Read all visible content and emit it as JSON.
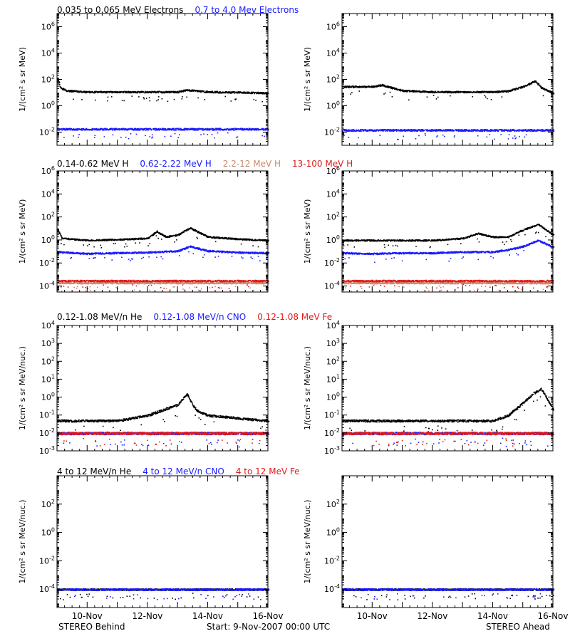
{
  "colors": {
    "black": "#000000",
    "blue": "#1a1aff",
    "tan": "#c98a6b",
    "red": "#e11a1a"
  },
  "footer": {
    "left": "STEREO Behind",
    "center": "Start:  9-Nov-2007 00:00 UTC",
    "right": "STEREO Ahead"
  },
  "chart_data": [
    {
      "type": "scatter",
      "row": 1,
      "scale": "log",
      "title_segments": [
        {
          "text": "0.035 to 0.065 MeV Electrons",
          "color": "black"
        },
        {
          "text": "0.7 to 4.0 Mev Electrons",
          "color": "blue"
        }
      ],
      "ylabel": "1/(cm² s sr MeV)",
      "ylim": [
        0.001,
        10000000
      ],
      "yticks": [
        {
          "label": "10^6",
          "v": 1000000
        },
        {
          "label": "10^4",
          "v": 10000
        },
        {
          "label": "10^2",
          "v": 100
        },
        {
          "label": "10^0",
          "v": 1
        },
        {
          "label": "10^-2",
          "v": 0.01
        }
      ],
      "panels": [
        {
          "name": "STEREO Behind",
          "series": [
            {
              "name": "0.035 to 0.065 MeV Electrons",
              "color": "black",
              "x": [
                0,
                0.1,
                0.3,
                1,
                2,
                3,
                4,
                4.3,
                5,
                6,
                7
              ],
              "y": [
                150,
                25,
                15,
                12,
                12,
                12,
                12,
                17,
                12,
                11,
                10
              ]
            },
            {
              "name": "0.7 to 4.0 Mev Electrons",
              "color": "blue",
              "x": [
                0,
                7
              ],
              "y": [
                0.018,
                0.018
              ]
            }
          ]
        },
        {
          "name": "STEREO Ahead",
          "series": [
            {
              "name": "0.035 to 0.065 MeV Electrons",
              "color": "black",
              "x": [
                0,
                1,
                1.3,
                2,
                3,
                4,
                5,
                5.5,
                6,
                6.4,
                6.6,
                7
              ],
              "y": [
                30,
                30,
                40,
                15,
                12,
                12,
                12,
                14,
                30,
                80,
                25,
                10
              ]
            },
            {
              "name": "0.7 to 4.0 Mev Electrons",
              "color": "blue",
              "x": [
                0,
                7
              ],
              "y": [
                0.015,
                0.015
              ]
            }
          ]
        }
      ]
    },
    {
      "type": "scatter",
      "row": 2,
      "scale": "log",
      "title_segments": [
        {
          "text": "0.14-0.62 MeV H",
          "color": "black"
        },
        {
          "text": "0.62-2.22 MeV H",
          "color": "blue"
        },
        {
          "text": "2.2-12 MeV H",
          "color": "tan"
        },
        {
          "text": "13-100 MeV H",
          "color": "red"
        }
      ],
      "ylabel": "1/(cm² s sr MeV)",
      "ylim": [
        3e-05,
        1000000
      ],
      "yticks": [
        {
          "label": "10^6",
          "v": 1000000
        },
        {
          "label": "10^4",
          "v": 10000
        },
        {
          "label": "10^2",
          "v": 100
        },
        {
          "label": "10^0",
          "v": 1
        },
        {
          "label": "10^-2",
          "v": 0.01
        },
        {
          "label": "10^-4",
          "v": 0.0001
        }
      ],
      "panels": [
        {
          "name": "STEREO Behind",
          "series": [
            {
              "name": "0.14-0.62 MeV H",
              "color": "black",
              "x": [
                0,
                0.15,
                1,
                2,
                3,
                3.3,
                3.6,
                4,
                4.4,
                5,
                6,
                7
              ],
              "y": [
                10,
                1.5,
                1.0,
                1.2,
                1.5,
                6,
                2,
                3,
                12,
                2,
                1.3,
                1.0
              ]
            },
            {
              "name": "0.62-2.22 MeV H",
              "color": "blue",
              "x": [
                0,
                1,
                2,
                3,
                4,
                4.4,
                5,
                6,
                7
              ],
              "y": [
                0.1,
                0.07,
                0.08,
                0.09,
                0.12,
                0.3,
                0.12,
                0.09,
                0.08
              ]
            },
            {
              "name": "2.2-12 MeV H",
              "color": "tan",
              "x": [
                0,
                7
              ],
              "y": [
                0.0002,
                0.0002
              ]
            },
            {
              "name": "13-100 MeV H",
              "color": "red",
              "x": [
                0,
                7
              ],
              "y": [
                0.0003,
                0.0003
              ]
            }
          ]
        },
        {
          "name": "STEREO Ahead",
          "series": [
            {
              "name": "0.14-0.62 MeV H",
              "color": "black",
              "x": [
                0,
                1,
                2,
                3,
                4,
                4.5,
                5,
                5.5,
                6,
                6.5,
                7
              ],
              "y": [
                1.0,
                1.0,
                1.0,
                1.0,
                1.5,
                4,
                2,
                2,
                8,
                25,
                3
              ]
            },
            {
              "name": "0.62-2.22 MeV H",
              "color": "blue",
              "x": [
                0,
                1,
                2,
                3,
                4,
                5,
                5.5,
                6,
                6.5,
                7
              ],
              "y": [
                0.08,
                0.07,
                0.08,
                0.08,
                0.1,
                0.1,
                0.15,
                0.3,
                1.0,
                0.25
              ]
            },
            {
              "name": "2.2-12 MeV H",
              "color": "tan",
              "x": [
                0,
                7
              ],
              "y": [
                0.0002,
                0.0002
              ]
            },
            {
              "name": "13-100 MeV H",
              "color": "red",
              "x": [
                0,
                7
              ],
              "y": [
                0.0003,
                0.0003
              ]
            }
          ]
        }
      ]
    },
    {
      "type": "scatter",
      "row": 3,
      "scale": "log",
      "title_segments": [
        {
          "text": "0.12-1.08 MeV/n He",
          "color": "black"
        },
        {
          "text": "0.12-1.08 MeV/n CNO",
          "color": "blue"
        },
        {
          "text": "0.12-1.08 MeV Fe",
          "color": "red"
        }
      ],
      "ylabel": "1/(cm² s sr MeV/nuc.)",
      "ylim": [
        0.001,
        10000
      ],
      "yticks": [
        {
          "label": "10^4",
          "v": 10000
        },
        {
          "label": "10^3",
          "v": 1000
        },
        {
          "label": "10^2",
          "v": 100
        },
        {
          "label": "10^1",
          "v": 10
        },
        {
          "label": "10^0",
          "v": 1
        },
        {
          "label": "10^-1",
          "v": 0.1
        },
        {
          "label": "10^-2",
          "v": 0.01
        },
        {
          "label": "10^-3",
          "v": 0.001
        }
      ],
      "panels": [
        {
          "name": "STEREO Behind",
          "series": [
            {
              "name": "0.12-1.08 MeV/n He",
              "color": "black",
              "x": [
                0,
                1,
                2,
                3,
                3.5,
                4,
                4.3,
                4.6,
                5,
                6,
                7
              ],
              "y": [
                0.05,
                0.05,
                0.05,
                0.1,
                0.2,
                0.4,
                1.5,
                0.2,
                0.1,
                0.07,
                0.05
              ]
            },
            {
              "name": "0.12-1.08 MeV/n CNO",
              "color": "blue",
              "x": [
                0,
                7
              ],
              "y": [
                0.01,
                0.01
              ]
            },
            {
              "name": "0.12-1.08 MeV Fe",
              "color": "red",
              "x": [
                0,
                7
              ],
              "y": [
                0.01,
                0.01
              ]
            }
          ]
        },
        {
          "name": "STEREO Ahead",
          "series": [
            {
              "name": "0.12-1.08 MeV/n He",
              "color": "black",
              "x": [
                0,
                1,
                2,
                3,
                4,
                5,
                5.5,
                6,
                6.3,
                6.6,
                7
              ],
              "y": [
                0.05,
                0.05,
                0.05,
                0.05,
                0.05,
                0.05,
                0.1,
                0.5,
                1.5,
                3,
                0.2
              ]
            },
            {
              "name": "0.12-1.08 MeV/n CNO",
              "color": "blue",
              "x": [
                0,
                7
              ],
              "y": [
                0.01,
                0.01
              ]
            },
            {
              "name": "0.12-1.08 MeV Fe",
              "color": "red",
              "x": [
                0,
                7
              ],
              "y": [
                0.01,
                0.01
              ]
            }
          ]
        }
      ]
    },
    {
      "type": "scatter",
      "row": 4,
      "scale": "log",
      "title_segments": [
        {
          "text": "4 to 12 MeV/n He",
          "color": "black"
        },
        {
          "text": "4 to 12 MeV/n CNO",
          "color": "blue"
        },
        {
          "text": "4 to 12 MeV Fe",
          "color": "red"
        }
      ],
      "ylabel": "1/(cm² s sr MeV/nuc.)",
      "ylim": [
        5e-06,
        10000
      ],
      "yticks": [
        {
          "label": "10^2",
          "v": 100
        },
        {
          "label": "10^0",
          "v": 1
        },
        {
          "label": "10^-2",
          "v": 0.01
        },
        {
          "label": "10^-4",
          "v": 0.0001
        }
      ],
      "panels": [
        {
          "name": "STEREO Behind",
          "series": [
            {
              "name": "4 to 12 MeV/n He",
              "color": "black",
              "x": [
                0,
                7
              ],
              "y": [
                0.0001,
                0.0001
              ]
            },
            {
              "name": "4 to 12 MeV/n CNO",
              "color": "blue",
              "x": [
                0,
                7
              ],
              "y": [
                0.0001,
                0.0001
              ]
            }
          ]
        },
        {
          "name": "STEREO Ahead",
          "series": [
            {
              "name": "4 to 12 MeV/n He",
              "color": "black",
              "x": [
                0,
                7
              ],
              "y": [
                0.0001,
                0.0001
              ]
            },
            {
              "name": "4 to 12 MeV/n CNO",
              "color": "blue",
              "x": [
                0,
                7
              ],
              "y": [
                0.0001,
                0.0001
              ]
            }
          ]
        }
      ]
    }
  ],
  "xaxis": {
    "range_days": [
      0,
      7
    ],
    "ticks": [
      {
        "label": "10-Nov",
        "day": 1
      },
      {
        "label": "12-Nov",
        "day": 3
      },
      {
        "label": "14-Nov",
        "day": 5
      },
      {
        "label": "16-Nov",
        "day": 7
      }
    ]
  }
}
